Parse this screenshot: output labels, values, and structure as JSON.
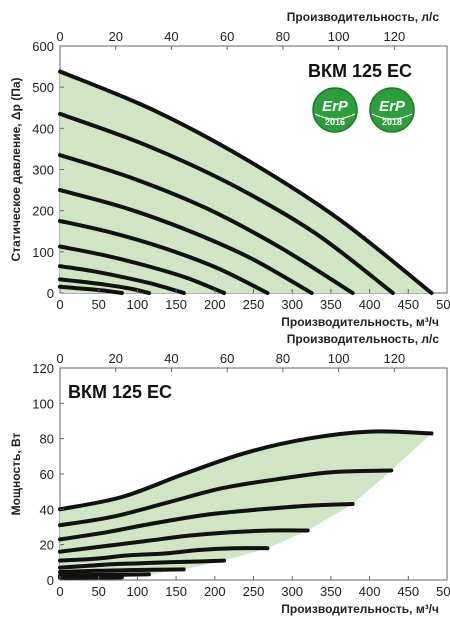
{
  "chart_data": [
    {
      "type": "line",
      "title": "ВКМ 125 ЕС",
      "xlabel": "Производительность, м³/ч",
      "x2label": "Производительность, л/с",
      "ylabel": "Статическое давление, Δр (Па)",
      "xlim": [
        0,
        500
      ],
      "x2lim": [
        0,
        138.9
      ],
      "ylim": [
        0,
        600
      ],
      "x_ticks": [
        "0",
        "50",
        "100",
        "150",
        "200",
        "250",
        "300",
        "350",
        "400",
        "450",
        "500"
      ],
      "x2_ticks": [
        "0",
        "20",
        "40",
        "60",
        "80",
        "100",
        "120"
      ],
      "y_ticks": [
        "0",
        "100",
        "200",
        "300",
        "400",
        "500",
        "600"
      ],
      "badges": [
        {
          "label": "ErP",
          "year": "2016",
          "color": "#2e9e3c"
        },
        {
          "label": "ErP",
          "year": "2018",
          "color": "#2e9e3c"
        }
      ],
      "fill_color": "#cfe5c4",
      "line_color": "#111111",
      "series": [
        {
          "x": [
            0,
            120,
            240,
            360,
            480
          ],
          "y": [
            538,
            445,
            325,
            180,
            0
          ]
        },
        {
          "x": [
            0,
            110,
            220,
            330,
            430
          ],
          "y": [
            435,
            360,
            265,
            145,
            0
          ]
        },
        {
          "x": [
            0,
            95,
            190,
            285,
            378
          ],
          "y": [
            335,
            278,
            205,
            110,
            0
          ]
        },
        {
          "x": [
            0,
            82,
            164,
            246,
            325
          ],
          "y": [
            250,
            208,
            153,
            85,
            0
          ]
        },
        {
          "x": [
            0,
            68,
            136,
            204,
            268
          ],
          "y": [
            175,
            146,
            108,
            60,
            0
          ]
        },
        {
          "x": [
            0,
            54,
            108,
            162,
            212
          ],
          "y": [
            113,
            93,
            68,
            38,
            0
          ]
        },
        {
          "x": [
            0,
            40,
            80,
            120,
            160
          ],
          "y": [
            65,
            54,
            39,
            22,
            0
          ]
        },
        {
          "x": [
            0,
            30,
            60,
            90,
            115
          ],
          "y": [
            33,
            27,
            20,
            11,
            0
          ]
        },
        {
          "x": [
            0,
            20,
            40,
            60,
            80
          ],
          "y": [
            15,
            12,
            9,
            5,
            0
          ]
        }
      ]
    },
    {
      "type": "line",
      "title": "ВКМ 125 ЕС",
      "xlabel": "Производительность, м³/ч",
      "x2label": "Производительность, л/с",
      "ylabel": "Мощность, Вт",
      "xlim": [
        0,
        500
      ],
      "x2lim": [
        0,
        138.9
      ],
      "ylim": [
        0,
        120
      ],
      "x_ticks": [
        "0",
        "50",
        "100",
        "150",
        "200",
        "250",
        "300",
        "350",
        "400",
        "450",
        "500"
      ],
      "x2_ticks": [
        "0",
        "20",
        "40",
        "60",
        "80",
        "100",
        "120"
      ],
      "y_ticks": [
        "0",
        "20",
        "40",
        "60",
        "80",
        "100",
        "120"
      ],
      "fill_color": "#cfe5c4",
      "line_color": "#111111",
      "series": [
        {
          "x": [
            0,
            80,
            160,
            240,
            320,
            400,
            480
          ],
          "y": [
            40,
            47,
            60,
            72,
            80,
            84,
            83
          ]
        },
        {
          "x": [
            0,
            70,
            140,
            210,
            280,
            350,
            428
          ],
          "y": [
            31,
            36,
            44,
            52,
            57,
            61,
            62
          ]
        },
        {
          "x": [
            0,
            60,
            120,
            190,
            260,
            320,
            378
          ],
          "y": [
            23,
            27,
            32,
            37,
            40,
            42,
            43
          ]
        },
        {
          "x": [
            0,
            55,
            110,
            165,
            220,
            270,
            320
          ],
          "y": [
            16,
            19,
            22,
            25,
            27,
            28,
            28
          ]
        },
        {
          "x": [
            0,
            45,
            90,
            135,
            180,
            225,
            268
          ],
          "y": [
            11,
            12,
            14,
            15,
            17,
            18,
            18
          ]
        },
        {
          "x": [
            0,
            35,
            70,
            105,
            140,
            180,
            212
          ],
          "y": [
            7,
            8,
            9,
            9.5,
            10,
            10.5,
            11
          ]
        },
        {
          "x": [
            0,
            30,
            60,
            90,
            120,
            160
          ],
          "y": [
            4.5,
            5,
            5.3,
            5.6,
            5.8,
            6
          ]
        },
        {
          "x": [
            0,
            25,
            50,
            75,
            100,
            115
          ],
          "y": [
            2.5,
            2.7,
            2.9,
            3,
            3.1,
            3.2
          ]
        },
        {
          "x": [
            0,
            20,
            40,
            60,
            80
          ],
          "y": [
            1.2,
            1.3,
            1.4,
            1.4,
            1.5
          ]
        }
      ]
    }
  ]
}
